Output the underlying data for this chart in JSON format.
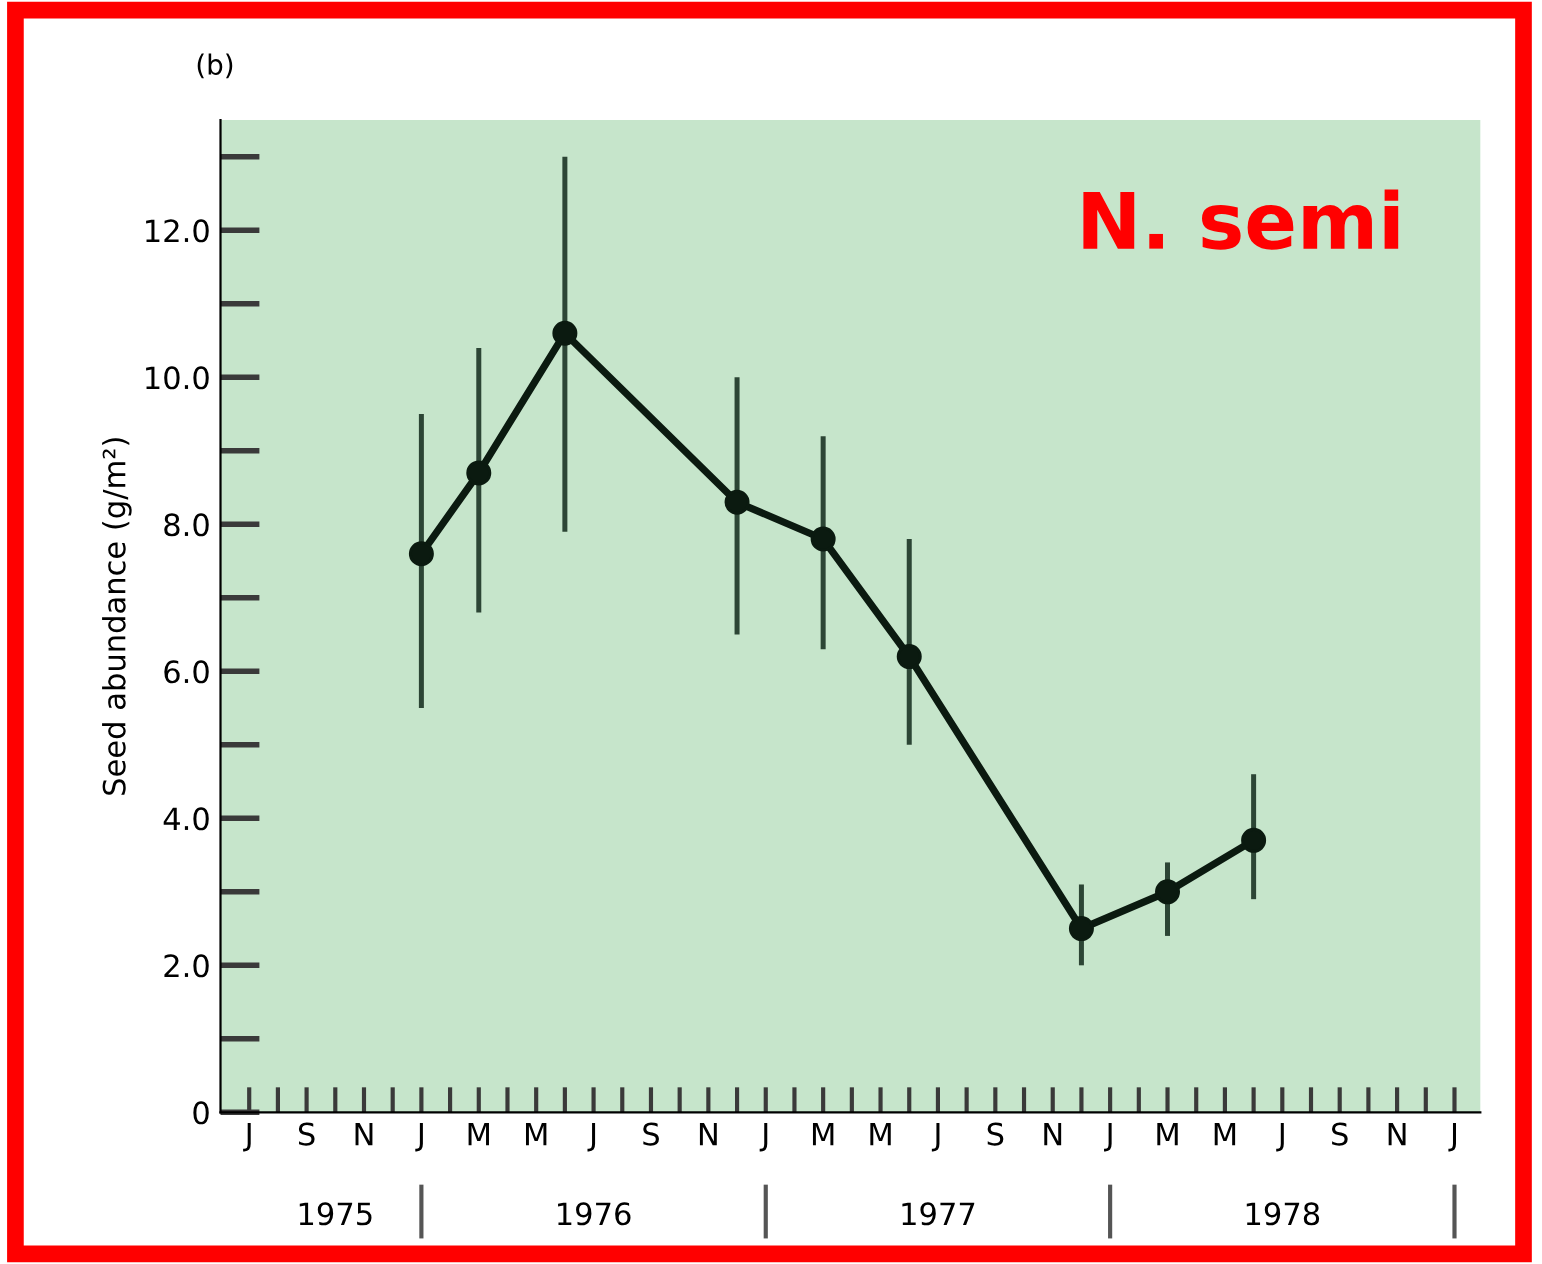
{
  "chart_data": {
    "type": "line",
    "annotations": [
      "(b)",
      "N. semi",
      "1975",
      "1976",
      "1977",
      "1978"
    ],
    "ylabel": "Seed abundance (g/m²)",
    "categories": [
      "J",
      null,
      "S",
      null,
      "N",
      null,
      "J",
      null,
      "M",
      null,
      "M",
      null,
      "J",
      null,
      "S",
      null,
      "N",
      null,
      "J",
      null,
      "M",
      null,
      "M",
      null,
      "J",
      null,
      "S",
      null,
      "N",
      null,
      "J",
      null,
      "M",
      null,
      "M",
      null,
      "J",
      null,
      "S",
      null,
      "N",
      null,
      "J"
    ],
    "series": [
      {
        "color": "#0b1a10",
        "values": [
          null,
          null,
          null,
          null,
          null,
          null,
          7.6,
          null,
          8.7,
          null,
          null,
          10.6,
          null,
          null,
          null,
          null,
          null,
          8.3,
          null,
          null,
          7.8,
          null,
          null,
          6.2,
          null,
          null,
          null,
          null,
          null,
          2.5,
          null,
          null,
          3.0,
          null,
          null,
          3.7,
          null,
          null,
          null,
          null,
          null,
          null,
          null
        ],
        "errors": [
          null,
          null,
          null,
          null,
          null,
          null,
          [
            5.5,
            9.5
          ],
          null,
          [
            6.8,
            10.4
          ],
          null,
          null,
          [
            7.9,
            13.0
          ],
          null,
          null,
          null,
          null,
          null,
          [
            6.5,
            10.0
          ],
          null,
          null,
          [
            6.3,
            9.2
          ],
          null,
          null,
          [
            5.0,
            7.8
          ],
          null,
          null,
          null,
          null,
          null,
          [
            2.0,
            3.1
          ],
          null,
          null,
          [
            2.4,
            3.4
          ],
          null,
          null,
          [
            2.9,
            4.6
          ],
          null,
          null,
          null,
          null,
          null,
          null,
          null
        ]
      }
    ],
    "marker": "circle",
    "line_style": "solid",
    "ylim": [
      0,
      13.5
    ],
    "yticks": [
      {
        "value": 0,
        "label": "0"
      },
      {
        "value": 2,
        "label": "2.0"
      },
      {
        "value": 4,
        "label": "4.0"
      },
      {
        "value": 6,
        "label": "6.0"
      },
      {
        "value": 8,
        "label": "8.0"
      },
      {
        "value": 10,
        "label": "10.0"
      },
      {
        "value": 12,
        "label": "12.0"
      }
    ]
  }
}
